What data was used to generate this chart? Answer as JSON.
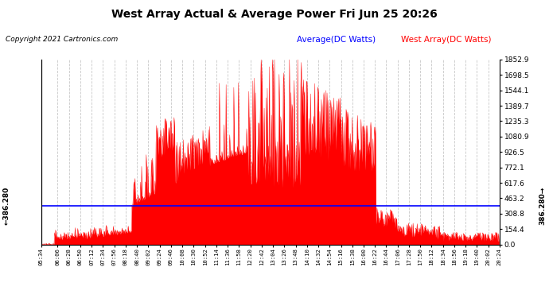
{
  "title": "West Array Actual & Average Power Fri Jun 25 20:26",
  "copyright": "Copyright 2021 Cartronics.com",
  "legend_average": "Average(DC Watts)",
  "legend_west": "West Array(DC Watts)",
  "avg_value": 386.28,
  "y_right_ticks": [
    0.0,
    154.4,
    308.8,
    463.2,
    617.6,
    772.1,
    926.5,
    1080.9,
    1235.3,
    1389.7,
    1544.1,
    1698.5,
    1852.9
  ],
  "ymax": 1852.9,
  "ymin": 0.0,
  "x_tick_labels": [
    "05:34",
    "06:06",
    "06:28",
    "06:50",
    "07:12",
    "07:34",
    "07:56",
    "08:18",
    "08:40",
    "09:02",
    "09:24",
    "09:46",
    "10:08",
    "10:30",
    "10:52",
    "11:14",
    "11:36",
    "11:58",
    "12:20",
    "12:42",
    "13:04",
    "13:26",
    "13:48",
    "14:10",
    "14:32",
    "14:54",
    "15:16",
    "15:38",
    "16:00",
    "16:22",
    "16:44",
    "17:06",
    "17:28",
    "17:50",
    "18:12",
    "18:34",
    "18:56",
    "19:18",
    "19:40",
    "20:02",
    "20:24"
  ],
  "background_color": "#ffffff",
  "grid_color": "#c8c8c8",
  "west_color": "#ff0000",
  "avg_line_color": "#0000ff",
  "title_color": "#000000",
  "copyright_color": "#000000",
  "legend_avg_color": "#0000ff",
  "legend_west_color": "#ff0000"
}
